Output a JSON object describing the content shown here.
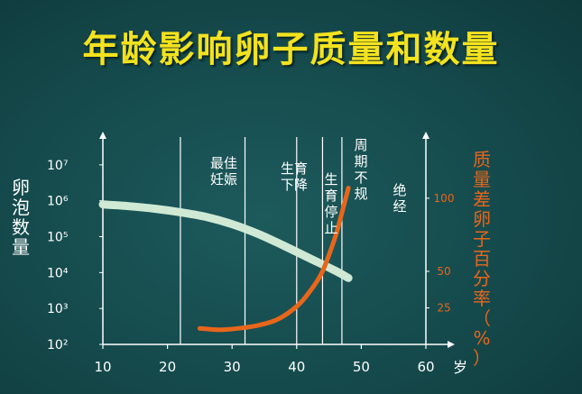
{
  "title": "年龄影响卵子质量和数量",
  "left_axis_label": "卵泡数量",
  "right_axis_label": "质量差卵子百分率（%）",
  "x_unit": "岁",
  "zones": [
    "最佳妊娠",
    "生育下降",
    "生育停止",
    "周期不规",
    "绝经"
  ],
  "colors": {
    "follicle_curve": "#cfe9d4",
    "quality_curve": "#e8661a",
    "axis": "#ffffff",
    "title": "#f3e21e"
  },
  "chart_data": {
    "type": "line",
    "title": "年龄影响卵子质量和数量",
    "xlabel": "岁",
    "x_ticks": [
      10,
      20,
      30,
      40,
      50,
      60
    ],
    "xlim": [
      10,
      60
    ],
    "y_left": {
      "label": "卵泡数量",
      "scale": "log",
      "ticks": [
        "10²",
        "10³",
        "10⁴",
        "10⁵",
        "10⁶",
        "10⁷"
      ],
      "tick_exponents": [
        2,
        3,
        4,
        5,
        6,
        7
      ],
      "lim_exponent": [
        2,
        7.7
      ]
    },
    "y_right": {
      "label": "质量差卵子百分率（%）",
      "ticks": [
        "25",
        "50",
        "100"
      ],
      "tick_values": [
        25,
        50,
        100
      ],
      "lim": [
        0,
        140
      ]
    },
    "zone_boundaries": [
      22,
      32,
      40,
      44,
      47
    ],
    "grid": false,
    "legend": "none",
    "series": [
      {
        "axis": "left",
        "x": [
          10,
          14,
          18,
          22,
          26,
          30,
          34,
          38,
          42,
          46,
          48
        ],
        "y_exponent": [
          5.9,
          5.85,
          5.78,
          5.68,
          5.55,
          5.35,
          5.08,
          4.75,
          4.4,
          4.05,
          3.85
        ]
      },
      {
        "axis": "right",
        "x": [
          25,
          28,
          31,
          34,
          37,
          40,
          42,
          44,
          46,
          47,
          48
        ],
        "y": [
          11,
          10,
          11,
          13,
          17,
          26,
          36,
          50,
          74,
          90,
          107
        ]
      }
    ]
  }
}
